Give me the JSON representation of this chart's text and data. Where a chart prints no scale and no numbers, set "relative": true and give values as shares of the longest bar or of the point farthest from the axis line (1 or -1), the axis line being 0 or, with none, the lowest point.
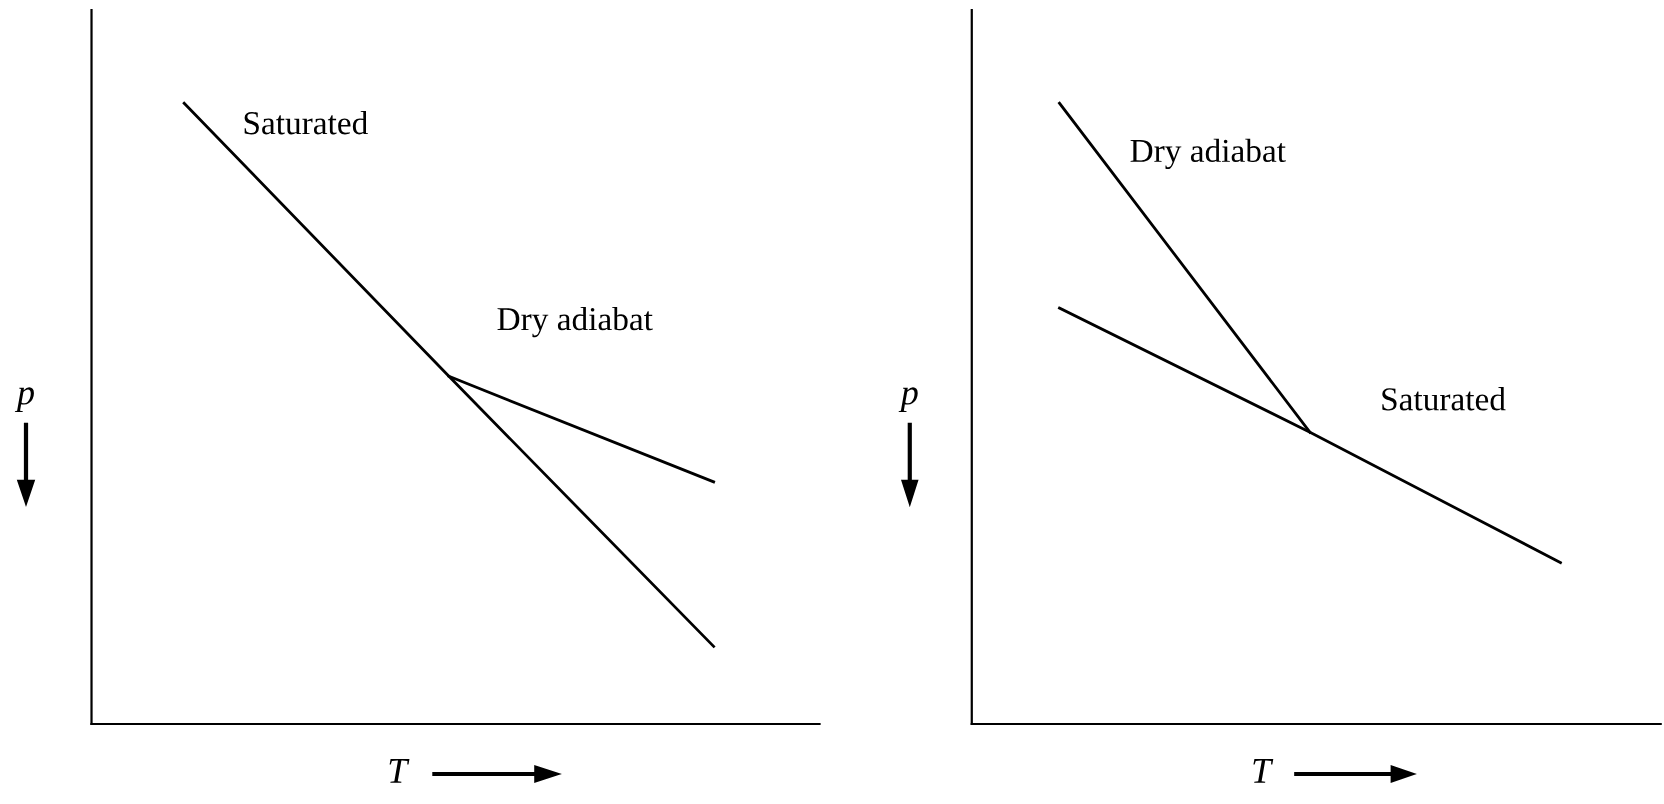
{
  "chart_data": [
    {
      "type": "line",
      "relative": true,
      "xlabel": "T",
      "ylabel": "p",
      "categories": [
        null,
        null,
        null
      ],
      "tick_labels": false,
      "legend": false,
      "line_style": "solid",
      "marker": "none",
      "series": [
        {
          "name": "Saturated",
          "color": "#000000",
          "values": [
            1,
            0.56,
            0.125
          ]
        },
        {
          "name": "Dry adiabat",
          "color": "#000000",
          "values": [
            null,
            0.56,
            0.39
          ]
        }
      ]
    },
    {
      "type": "line",
      "relative": true,
      "xlabel": "T",
      "ylabel": "p",
      "categories": [
        null,
        null,
        null
      ],
      "tick_labels": false,
      "legend": false,
      "line_style": "solid",
      "marker": "none",
      "series": [
        {
          "name": "Saturated",
          "color": "#000000",
          "values": [
            0.67,
            0.47,
            0.26
          ]
        },
        {
          "name": "Dry adiabat",
          "color": "#000000",
          "values": [
            1,
            0.47,
            null
          ]
        }
      ]
    }
  ]
}
